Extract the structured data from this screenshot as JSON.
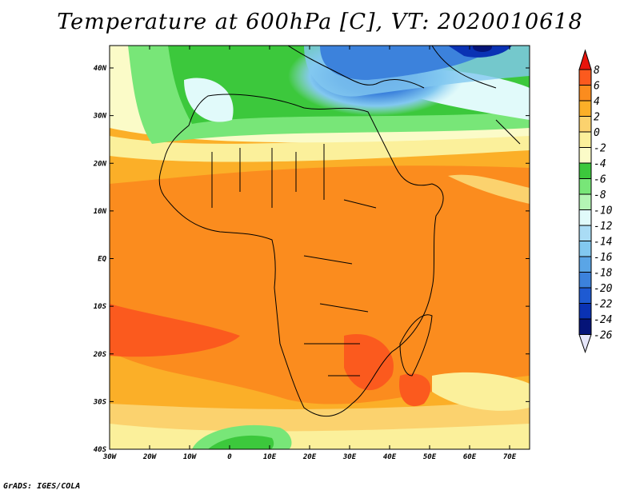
{
  "title": "Temperature at 600hPa [C], VT: 2020010618",
  "credit": "GrADS: IGES/COLA",
  "map": {
    "lat_labels": [
      "40N",
      "30N",
      "20N",
      "10N",
      "EQ",
      "10S",
      "20S",
      "30S",
      "40S"
    ],
    "lon_labels": [
      "30W",
      "20W",
      "10W",
      "0",
      "10E",
      "20E",
      "30E",
      "40E",
      "50E",
      "60E",
      "70E"
    ]
  },
  "colorbar": {
    "levels": [
      "8",
      "6",
      "4",
      "2",
      "0",
      "-2",
      "-4",
      "-6",
      "-8",
      "-10",
      "-12",
      "-14",
      "-16",
      "-18",
      "-20",
      "-22",
      "-24",
      "-26"
    ],
    "colors": [
      "#e8140c",
      "#fb5a1e",
      "#fb8c1e",
      "#fbaf28",
      "#fbd26e",
      "#fbf09b",
      "#fbfbc8",
      "#3cc83c",
      "#78e678",
      "#b4f5b4",
      "#e1fafa",
      "#aadcf5",
      "#82c8f0",
      "#5aa5e6",
      "#3c82dc",
      "#1e5ad2",
      "#0a32b4",
      "#051478"
    ]
  }
}
